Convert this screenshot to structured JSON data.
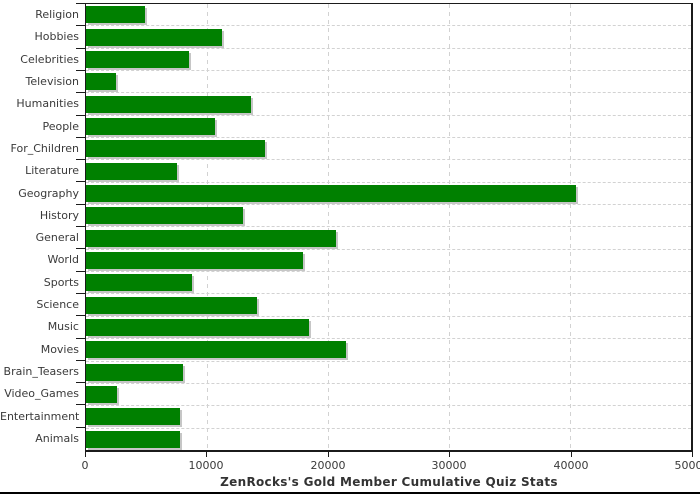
{
  "chart_data": {
    "type": "bar",
    "orientation": "horizontal",
    "title": "ZenRocks's Gold Member Cumulative Quiz Stats",
    "categories": [
      "Religion",
      "Hobbies",
      "Celebrities",
      "Television",
      "Humanities",
      "People",
      "For_Children",
      "Literature",
      "Geography",
      "History",
      "General",
      "World",
      "Sports",
      "Science",
      "Music",
      "Movies",
      "Brain_Teasers",
      "Video_Games",
      "Entertainment",
      "Animals"
    ],
    "values": [
      4900,
      11200,
      8500,
      2500,
      13600,
      10700,
      14800,
      7500,
      40500,
      13000,
      20700,
      17900,
      8800,
      14100,
      18400,
      21500,
      8000,
      2550,
      7800,
      7750
    ],
    "xlabel": "",
    "ylabel": "",
    "xlim": [
      0,
      50000
    ],
    "x_ticks": [
      0,
      10000,
      20000,
      30000,
      40000,
      50000
    ],
    "x_tick_labels": [
      "0",
      "10000",
      "20000",
      "30000",
      "40000",
      "50000"
    ],
    "grid": "dashed, horizontal at category boundaries and vertical at major x ticks",
    "legend": "none",
    "colors": {
      "bar": "#008000",
      "bar_shadow": "#c6c6c6",
      "gridline": "#d2d2d2",
      "axis": "#1b1b1b",
      "tick_text": "#3a3a3a",
      "title_text": "#333333",
      "background": "#ffffff"
    }
  }
}
